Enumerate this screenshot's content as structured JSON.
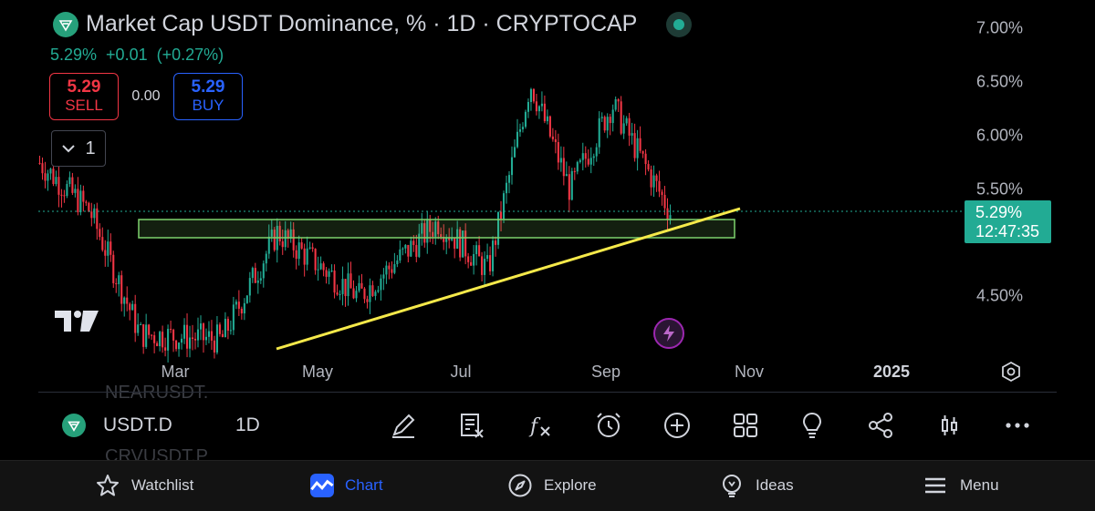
{
  "header": {
    "title": "Market Cap USDT Dominance, % · 1D · CRYPTOCAP",
    "last_value": "5.29%",
    "change": "+0.01",
    "change_percent": "(+0.27%)"
  },
  "trade": {
    "sell_price": "5.29",
    "sell_label": "SELL",
    "spread": "0.00",
    "buy_price": "5.29",
    "buy_label": "BUY"
  },
  "indicators_collapsed_count": "1",
  "price_axis": {
    "labels": [
      "7.00%",
      "6.50%",
      "6.00%",
      "5.50%",
      "4.50%"
    ],
    "current_price": "5.29%",
    "countdown": "12:47:35"
  },
  "time_axis": {
    "labels": [
      "Mar",
      "May",
      "Jul",
      "Sep",
      "Nov",
      "2025"
    ]
  },
  "ghost_watchlist": [
    "NEARUSDT.",
    "CRVUSDT.P"
  ],
  "symbol_bar": {
    "symbol": "USDT.D",
    "interval": "1D",
    "tools": [
      "draw-icon",
      "object-tree-icon",
      "indicators-icon",
      "alert-icon",
      "add-icon",
      "layouts-icon",
      "ideas-bulb-icon",
      "share-icon",
      "candle-type-icon",
      "more-icon"
    ]
  },
  "bottom_nav": {
    "watchlist": "Watchlist",
    "chart": "Chart",
    "explore": "Explore",
    "ideas": "Ideas",
    "menu": "Menu"
  },
  "colors": {
    "up": "#22ab94",
    "down": "#f23645",
    "accent": "#2962ff",
    "trendline": "#f5e94a",
    "zone": "#7ed36d"
  },
  "chart_data": {
    "type": "candlestick",
    "symbol": "USDT.D",
    "timeframe": "1D",
    "y_unit": "%",
    "y_range": [
      3.9,
      7.2
    ],
    "series_key_points": [
      {
        "date": "2024-02-01",
        "close": 5.75
      },
      {
        "date": "2024-02-20",
        "close": 5.3
      },
      {
        "date": "2024-03-10",
        "close": 4.15
      },
      {
        "date": "2024-04-10",
        "close": 4.1
      },
      {
        "date": "2024-05-01",
        "close": 5.1
      },
      {
        "date": "2024-06-01",
        "close": 4.5
      },
      {
        "date": "2024-07-01",
        "close": 5.2
      },
      {
        "date": "2024-07-20",
        "close": 4.75
      },
      {
        "date": "2024-08-05",
        "close": 6.5
      },
      {
        "date": "2024-08-20",
        "close": 5.5
      },
      {
        "date": "2024-09-05",
        "close": 6.3
      },
      {
        "date": "2024-09-27",
        "close": 5.29
      }
    ],
    "support_zone": [
      5.04,
      5.2
    ],
    "trendline": {
      "from": {
        "date": "2024-04-15",
        "value": 3.95
      },
      "to": {
        "date": "2024-10-20",
        "value": 5.33
      }
    },
    "last_price": 5.29
  }
}
